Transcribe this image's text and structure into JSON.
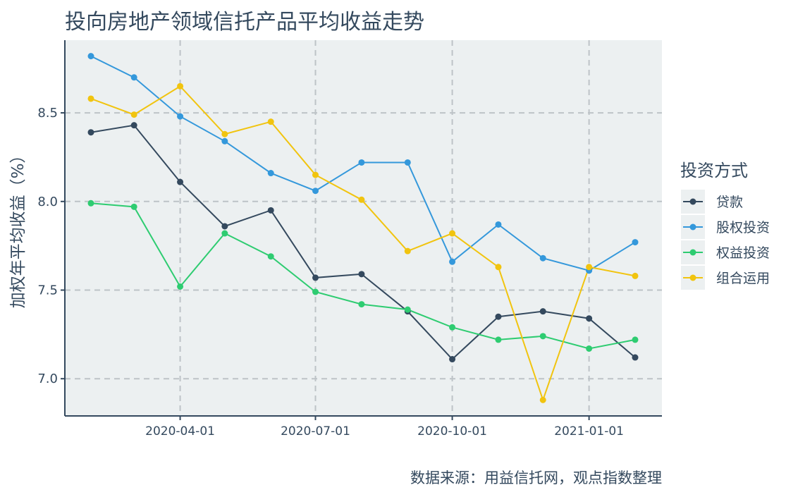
{
  "chart_data": {
    "type": "line",
    "title": "投向房地产领域信托产品平均收益走势",
    "caption": "数据来源：用益信托网，观点指数整理",
    "xlabel": "",
    "ylabel": "加权年平均收益（%）",
    "x": [
      "2020-02-01",
      "2020-03-01",
      "2020-04-01",
      "2020-05-01",
      "2020-06-01",
      "2020-07-01",
      "2020-08-01",
      "2020-09-01",
      "2020-10-01",
      "2020-11-01",
      "2020-12-01",
      "2021-01-01",
      "2021-02-01"
    ],
    "x_ticks": [
      "2020-04-01",
      "2020-07-01",
      "2020-10-01",
      "2021-01-01"
    ],
    "y_ticks": [
      "7.0",
      "7.5",
      "8.0",
      "8.5"
    ],
    "ylim": [
      6.79,
      8.91
    ],
    "grid": true,
    "legend": {
      "title": "投资方式",
      "position": "right"
    },
    "series": [
      {
        "name": "贷款",
        "color": "#34495e",
        "values": [
          8.39,
          8.43,
          8.11,
          7.86,
          7.95,
          7.57,
          7.59,
          7.38,
          7.11,
          7.35,
          7.38,
          7.34,
          7.12
        ]
      },
      {
        "name": "股权投资",
        "color": "#3498db",
        "values": [
          8.82,
          8.7,
          8.48,
          8.34,
          8.16,
          8.06,
          8.22,
          8.22,
          7.66,
          7.87,
          7.68,
          7.61,
          7.77
        ]
      },
      {
        "name": "权益投资",
        "color": "#2ecc71",
        "values": [
          7.99,
          7.97,
          7.52,
          7.82,
          7.69,
          7.49,
          7.42,
          7.39,
          7.29,
          7.22,
          7.24,
          7.17,
          7.22
        ]
      },
      {
        "name": "组合运用",
        "color": "#f1c40f",
        "values": [
          8.58,
          8.49,
          8.65,
          8.38,
          8.45,
          8.15,
          8.01,
          7.72,
          7.82,
          7.63,
          6.88,
          7.63,
          7.58
        ]
      }
    ]
  }
}
